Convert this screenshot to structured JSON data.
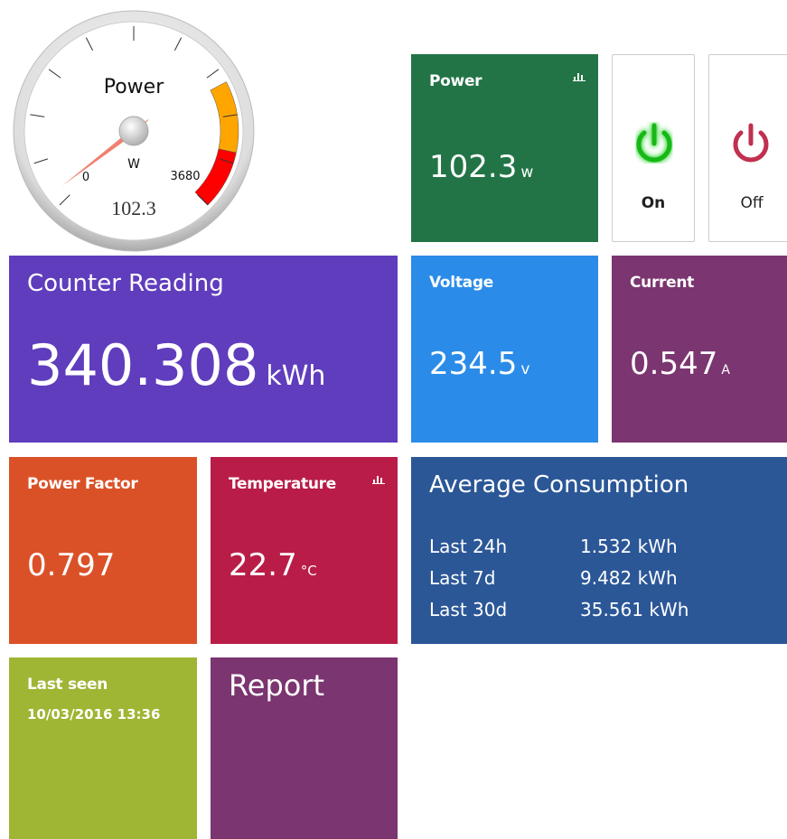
{
  "gauge": {
    "title": "Power",
    "unit": "W",
    "min": 0,
    "max": 3680,
    "value": 102.3
  },
  "tiles": {
    "power": {
      "label": "Power",
      "value": 102.3,
      "unit": "w"
    },
    "switches": {
      "on": "On",
      "off": "Off"
    },
    "counter": {
      "label": "Counter Reading",
      "value": 340.308,
      "unit": "kWh"
    },
    "voltage": {
      "label": "Voltage",
      "value": 234.5,
      "unit": "v"
    },
    "current": {
      "label": "Current",
      "value": 0.547,
      "unit": "A"
    },
    "power_factor": {
      "label": "Power Factor",
      "value": 0.797
    },
    "temperature": {
      "label": "Temperature",
      "value": 22.7,
      "unit": "°C"
    },
    "average": {
      "label": "Average Consumption",
      "rows": [
        [
          "Last 24h",
          "1.532 kWh"
        ],
        [
          "Last 7d",
          "9.482 kWh"
        ],
        [
          "Last 30d",
          "35.561 kWh"
        ]
      ]
    },
    "last_seen": {
      "label": "Last seen",
      "value": "10/03/2016 13:36"
    },
    "report": {
      "label": "Report"
    }
  }
}
